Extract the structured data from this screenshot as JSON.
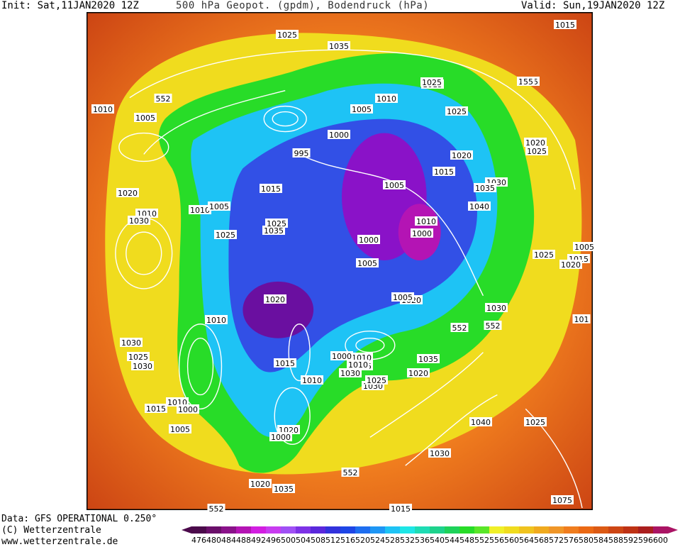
{
  "header": {
    "init": "Init: Sat,11JAN2020 12Z",
    "title": "500 hPa Geopot. (gpdm), Bodendruck (hPa)",
    "valid": "Valid: Sun,19JAN2020 12Z"
  },
  "footer": {
    "data_line": "Data: GFS OPERATIONAL 0.250°",
    "copyright": "(C) Wetterzentrale",
    "url": "www.wetterzentrale.de"
  },
  "legend": {
    "values": [
      "476",
      "480",
      "484",
      "488",
      "492",
      "496",
      "500",
      "504",
      "508",
      "512",
      "516",
      "520",
      "524",
      "528",
      "532",
      "536",
      "540",
      "544",
      "548",
      "552",
      "556",
      "560",
      "564",
      "568",
      "572",
      "576",
      "580",
      "584",
      "588",
      "592",
      "596",
      "600"
    ],
    "colors": [
      "#4b0a4b",
      "#6a0f6a",
      "#8a128a",
      "#b414b4",
      "#d21ee1",
      "#c83cf0",
      "#a050f5",
      "#7d32e6",
      "#5a28dc",
      "#3232dc",
      "#1e46e6",
      "#1e6ef0",
      "#1e96f5",
      "#1ec3f5",
      "#1ee6e6",
      "#1edcb4",
      "#1ed28c",
      "#1ed25a",
      "#28dc28",
      "#5ae628",
      "#f0f028",
      "#f0dc1e",
      "#f0c31e",
      "#f0aa1e",
      "#f09628",
      "#f07d1e",
      "#eb6914",
      "#dc5a14",
      "#cd4614",
      "#be3214",
      "#aa1e1e",
      "#aa1464"
    ]
  },
  "isobars": [
    "1015",
    "552",
    "1020",
    "1025",
    "1015",
    "1010",
    "1005",
    "552",
    "1010",
    "1005",
    "1025",
    "1000",
    "995",
    "1015",
    "1020",
    "1015",
    "1020",
    "1025",
    "1030",
    "1010",
    "1005",
    "1005",
    "1040",
    "1035",
    "1020",
    "1010",
    "1030",
    "1025",
    "1035",
    "1025",
    "1000",
    "1010",
    "1000",
    "1015",
    "1025",
    "1020",
    "1005",
    "1020",
    "1010",
    "1030",
    "1025",
    "552",
    "552",
    "1030",
    "1015",
    "1035",
    "1030",
    "101",
    "1025",
    "1020",
    "1010",
    "1005",
    "1040",
    "1010",
    "1030",
    "1010",
    "1020",
    "1000",
    "1005",
    "1025",
    "1030",
    "1020",
    "552",
    "1035",
    "552",
    "1015",
    "1000",
    "1075",
    "1015",
    "1030",
    "1015",
    "1020",
    "1005",
    "1000",
    "1010",
    "1005",
    "1025",
    "1035",
    "1025",
    "55"
  ],
  "map_features": {
    "outer_color": "#e05a14",
    "ring_color": "#f0c31e",
    "vortex_color": "#28dc28",
    "core_color": "#8a12c8"
  }
}
